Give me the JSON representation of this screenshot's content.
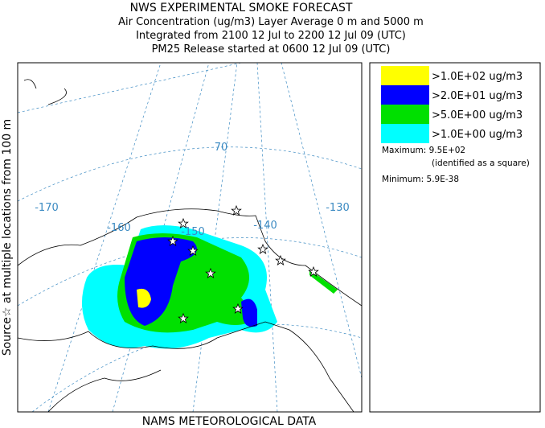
{
  "header": {
    "title": "NWS EXPERIMENTAL SMOKE FORECAST",
    "lines": [
      "Air Concentration (ug/m3) Layer Average    0 m and  5000 m",
      "Integrated from 2100 12 Jul to 2200 12 Jul 09 (UTC)",
      "PM25 Release started at 0600 12 Jul 09 (UTC)"
    ]
  },
  "side_label": "Source☆ at multiple locations from  100 m",
  "footer": "NAMS METEOROLOGICAL DATA",
  "map": {
    "grid_labels": [
      "-170",
      "-160",
      "-150",
      "-140",
      "-130",
      "70"
    ]
  },
  "legend": {
    "entries": [
      {
        "label": ">1.0E+02 ug/m3",
        "color": "#ffff00"
      },
      {
        "label": ">2.0E+01 ug/m3",
        "color": "#0000ff"
      },
      {
        "label": ">5.0E+00 ug/m3",
        "color": "#00e000"
      },
      {
        "label": ">1.0E+00 ug/m3",
        "color": "#00ffff"
      }
    ],
    "maximum": "Maximum: 9.5E+02",
    "maximum_note": "(identified as a square)",
    "minimum": "Minimum: 5.9E-38"
  }
}
